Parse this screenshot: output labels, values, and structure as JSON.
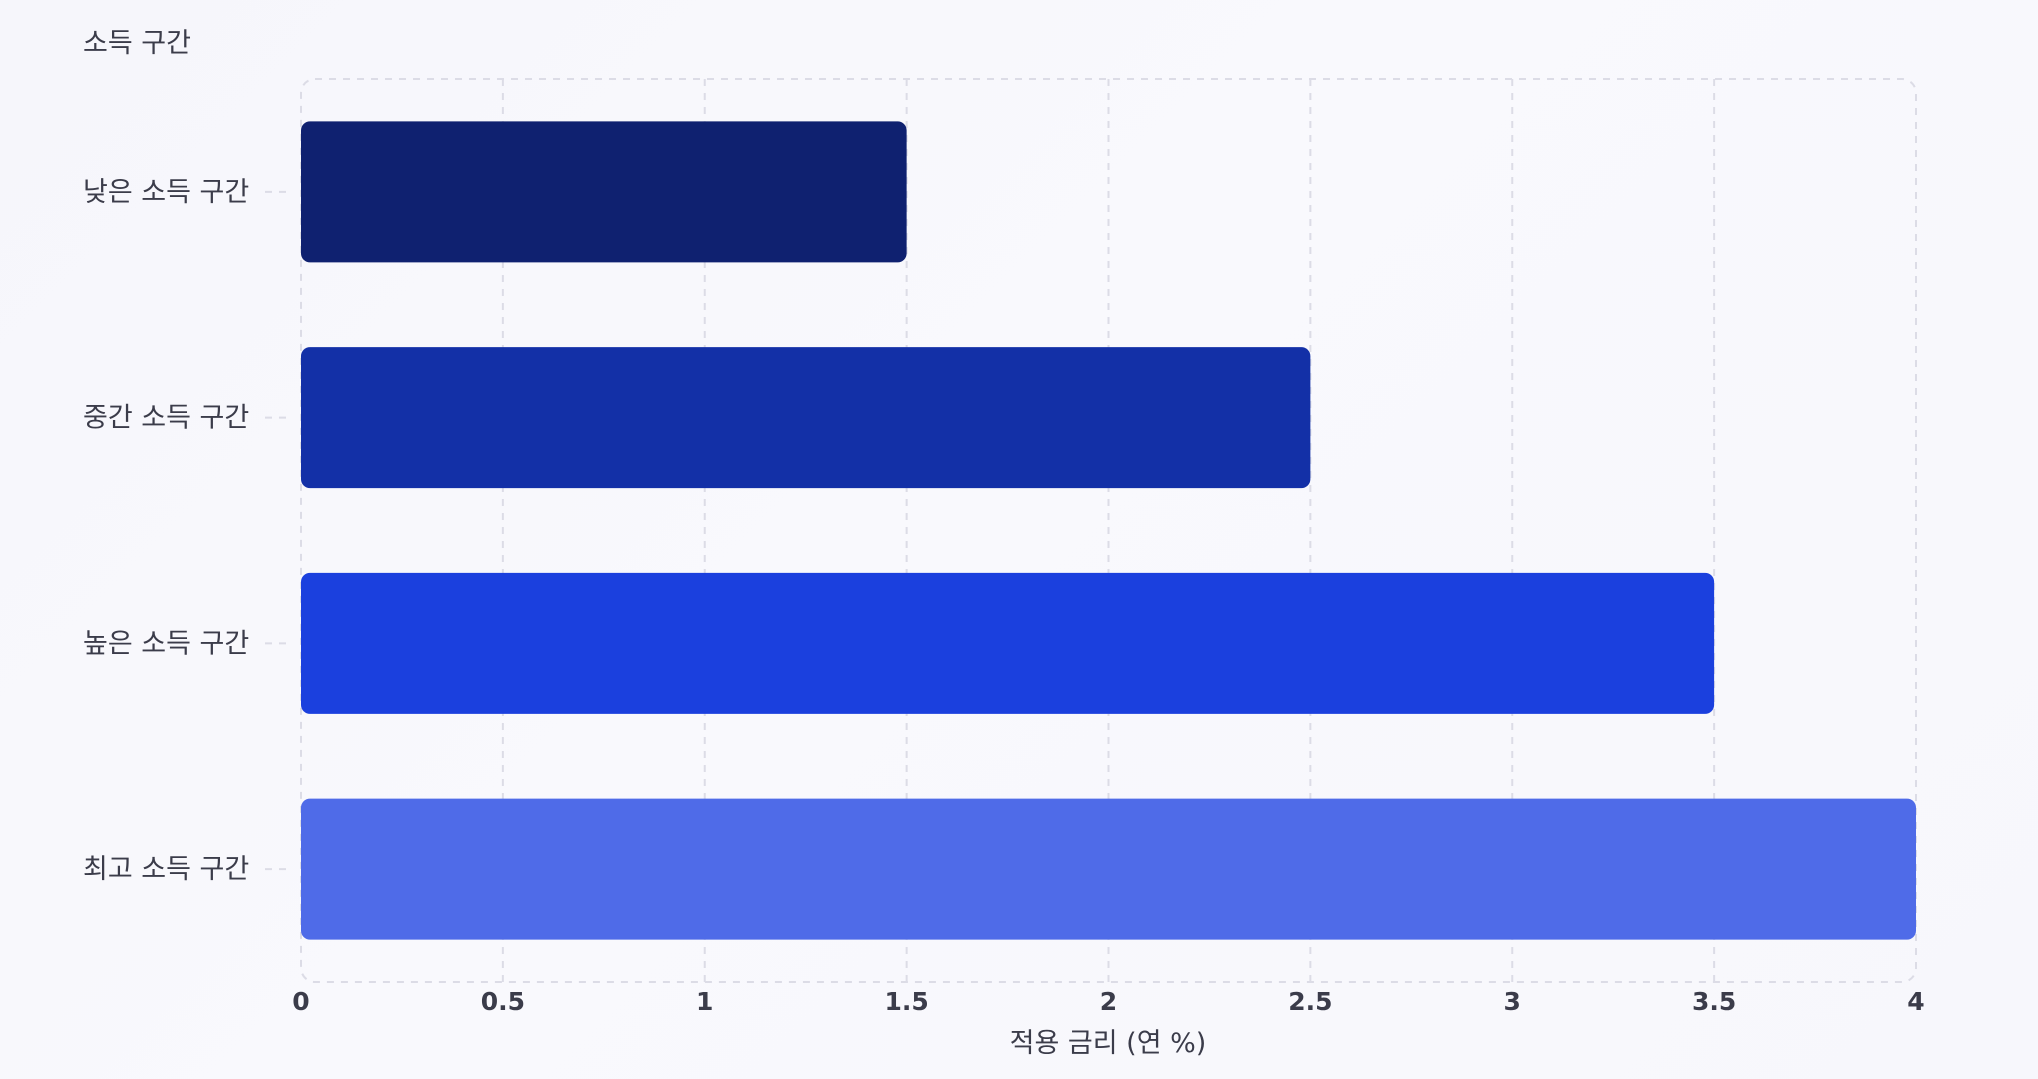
{
  "chart_data": {
    "type": "bar",
    "orientation": "horizontal",
    "y_axis_title": "소득 구간",
    "x_axis_title": "적용 금리 (연 %)",
    "categories": [
      "낮은 소득 구간",
      "중간 소득 구간",
      "높은 소득 구간",
      "최고 소득 구간"
    ],
    "values": [
      1.5,
      2.5,
      3.5,
      4
    ],
    "bar_colors": [
      "#0f2170",
      "#1330a7",
      "#1b40de",
      "#4f6be8"
    ],
    "xlim": [
      0,
      4
    ],
    "x_ticks": [
      0,
      0.5,
      1,
      1.5,
      2,
      2.5,
      3,
      3.5,
      4
    ],
    "x_tick_labels": [
      "0",
      "0.5",
      "1",
      "1.5",
      "2",
      "2.5",
      "3",
      "3.5",
      "4"
    ],
    "grid": true,
    "legend": false
  }
}
